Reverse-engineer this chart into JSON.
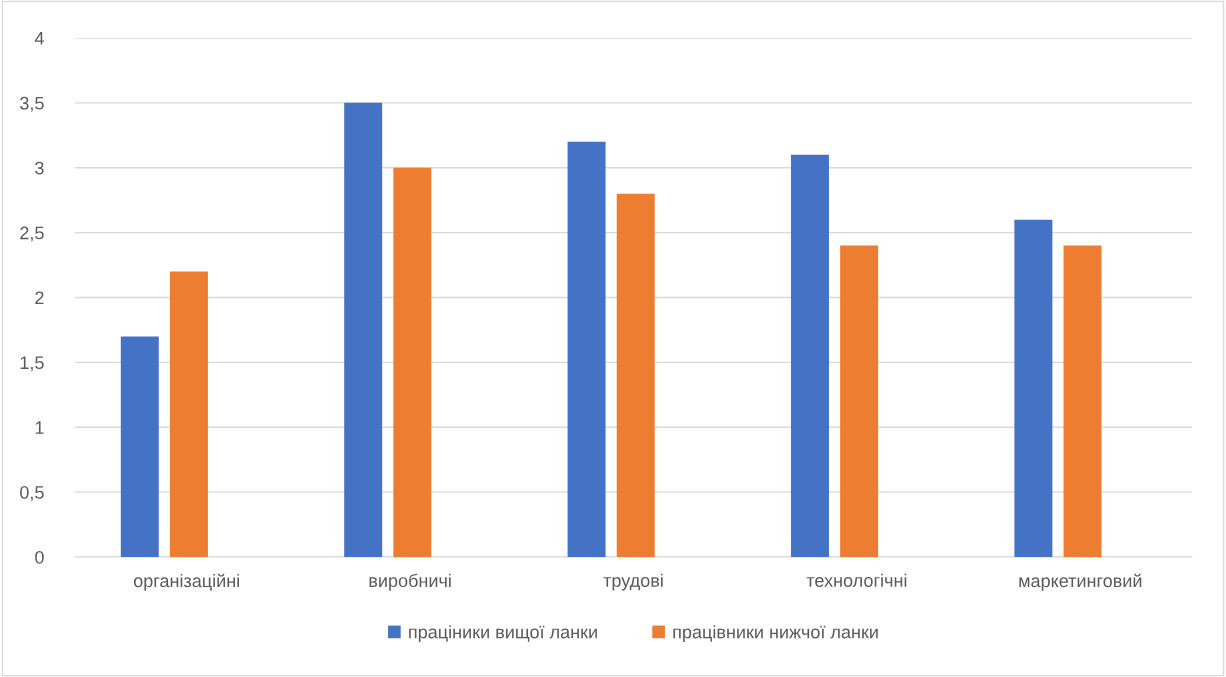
{
  "chart_data": {
    "type": "bar",
    "categories": [
      "організаційні",
      "виробничі",
      "трудові",
      "технологічні",
      "маркетинговий"
    ],
    "series": [
      {
        "name": "праціники вищої ланки",
        "color": "#4472c4",
        "values": [
          1.7,
          3.5,
          3.2,
          3.1,
          2.6
        ]
      },
      {
        "name": "працівники нижчої ланки",
        "color": "#ed7d31",
        "values": [
          2.2,
          3.0,
          2.8,
          2.4,
          2.4
        ]
      }
    ],
    "ylim": [
      0,
      4
    ],
    "yticks": [
      0,
      {
        "value": 0.5,
        "label": "0,5"
      },
      1,
      {
        "value": 1.5,
        "label": "1,5"
      },
      2,
      {
        "value": 2.5,
        "label": "2,5"
      },
      3,
      {
        "value": 3.5,
        "label": "3,5"
      },
      4
    ],
    "grid": "y",
    "legend": "bottom"
  }
}
